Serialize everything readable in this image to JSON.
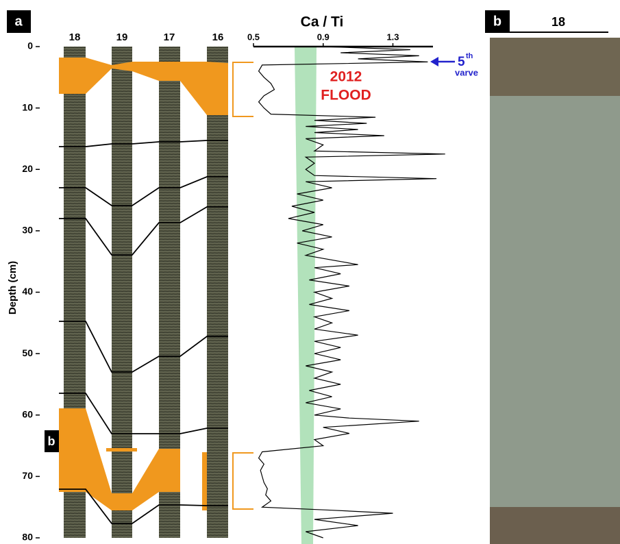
{
  "chart_data": {
    "type": "line",
    "panel_labels": [
      "a",
      "b"
    ],
    "title": "Ca / Ti",
    "y_label": "Depth (cm)",
    "core_labels": [
      "18",
      "19",
      "17",
      "16"
    ],
    "panel_b_core_label": "18",
    "annotations": {
      "flood_year": "2012",
      "flood_word": "FLOOD",
      "varve_number": "5",
      "varve_suffix": "th",
      "varve_word": "varve"
    },
    "xlim": [
      0.5,
      1.53
    ],
    "xticks": [
      0.5,
      0.9,
      1.3
    ],
    "ylim": [
      0,
      80
    ],
    "yticks": [
      0,
      10,
      20,
      30,
      40,
      50,
      60,
      70,
      80
    ],
    "series": [
      {
        "color": "#000000",
        "depth": [
          0,
          0.5,
          1,
          1.5,
          2,
          2.5,
          3,
          4,
          5,
          6,
          7,
          8,
          9,
          10,
          11,
          11.5,
          12,
          12.5,
          13,
          13.5,
          14,
          14.5,
          15,
          16,
          17,
          17.5,
          18,
          19,
          20,
          21,
          21.5,
          22,
          23,
          24,
          25,
          26,
          27,
          28,
          29,
          30,
          31,
          32,
          33,
          34,
          35,
          35.5,
          36,
          37,
          38,
          39,
          40,
          41,
          42,
          43,
          44,
          45,
          46,
          47,
          48,
          49,
          50,
          51,
          52,
          53,
          54,
          55,
          56,
          57,
          58,
          59,
          60,
          60.5,
          61,
          62,
          63,
          64,
          65,
          66,
          67,
          68,
          69,
          70,
          71,
          72,
          73,
          74,
          75,
          75.5,
          76,
          77,
          78,
          79,
          80
        ],
        "values": [
          0.9,
          1.4,
          1.0,
          1.45,
          1.1,
          1.5,
          0.55,
          0.53,
          0.56,
          0.6,
          0.62,
          0.56,
          0.53,
          0.56,
          0.6,
          1.2,
          0.85,
          1.15,
          0.8,
          1.1,
          0.85,
          1.25,
          0.8,
          0.9,
          0.85,
          1.6,
          0.8,
          0.85,
          0.8,
          0.85,
          1.55,
          0.8,
          0.95,
          0.75,
          0.9,
          0.72,
          0.85,
          0.7,
          0.9,
          0.78,
          0.95,
          0.75,
          0.9,
          0.8,
          1.0,
          1.1,
          0.85,
          1.0,
          0.82,
          1.05,
          0.85,
          0.95,
          0.82,
          1.05,
          0.85,
          0.95,
          0.85,
          1.1,
          0.85,
          1.0,
          0.85,
          1.0,
          0.8,
          0.95,
          0.85,
          1.0,
          0.82,
          0.95,
          0.8,
          1.0,
          0.85,
          1.05,
          1.45,
          0.9,
          1.05,
          0.85,
          0.9,
          0.55,
          0.53,
          0.56,
          0.54,
          0.55,
          0.56,
          0.58,
          0.57,
          0.6,
          0.55,
          0.95,
          1.3,
          0.85,
          1.1,
          0.8,
          0.9
        ]
      }
    ]
  }
}
